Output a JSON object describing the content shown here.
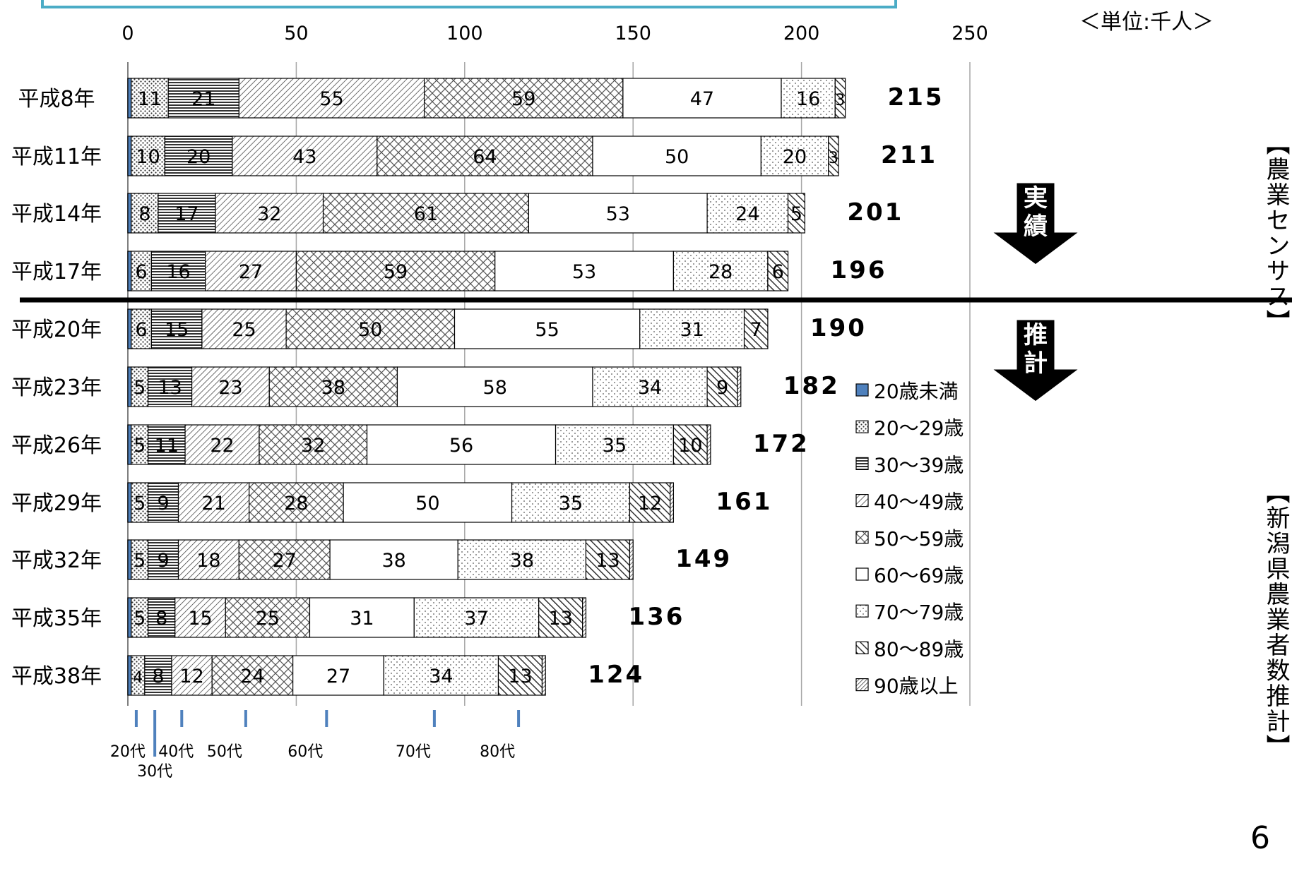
{
  "unit_label": "＜単位:千人＞",
  "page_number": "6",
  "side_labels": {
    "actual": "【農業センサス】",
    "estimate": "【新潟県農業者数推計】"
  },
  "arrows": {
    "actual": "実績",
    "estimate": "推計"
  },
  "colors": {
    "under20": "#4f81bd",
    "grid": "#a6a6a6",
    "divider": "#000000",
    "band": "#4bacc6"
  },
  "chart_data": {
    "type": "bar",
    "orientation": "horizontal",
    "stacked": true,
    "xlim": [
      0,
      250
    ],
    "x_ticks": [
      "0",
      "50",
      "100",
      "150",
      "200",
      "250"
    ],
    "grid": true,
    "legend_position": "right",
    "categories": [
      "平成8年",
      "平成11年",
      "平成14年",
      "平成17年",
      "平成20年",
      "平成23年",
      "平成26年",
      "平成29年",
      "平成32年",
      "平成35年",
      "平成38年"
    ],
    "totals": [
      "215",
      "211",
      "201",
      "196",
      "190",
      "182",
      "172",
      "161",
      "149",
      "136",
      "124"
    ],
    "series": [
      {
        "name": "20歳未満",
        "pattern": "solid",
        "values": [
          1,
          1,
          1,
          1,
          1,
          1,
          1,
          1,
          1,
          1,
          1
        ]
      },
      {
        "name": "20〜29歳",
        "pattern": "dots",
        "values": [
          11,
          10,
          8,
          6,
          6,
          5,
          5,
          5,
          5,
          5,
          4
        ]
      },
      {
        "name": "30〜39歳",
        "pattern": "hlines",
        "values": [
          21,
          20,
          17,
          16,
          15,
          13,
          11,
          9,
          9,
          8,
          8
        ]
      },
      {
        "name": "40〜49歳",
        "pattern": "diag-thin",
        "values": [
          55,
          43,
          32,
          27,
          25,
          23,
          22,
          21,
          18,
          15,
          12
        ]
      },
      {
        "name": "50〜59歳",
        "pattern": "crosshatch",
        "values": [
          59,
          64,
          61,
          59,
          50,
          38,
          32,
          28,
          27,
          25,
          24
        ]
      },
      {
        "name": "60〜69歳",
        "pattern": "blank",
        "values": [
          47,
          50,
          53,
          53,
          55,
          58,
          56,
          50,
          38,
          31,
          27
        ]
      },
      {
        "name": "70〜79歳",
        "pattern": "sparse-dots",
        "values": [
          16,
          20,
          24,
          28,
          31,
          34,
          35,
          35,
          38,
          37,
          34
        ]
      },
      {
        "name": "80〜89歳",
        "pattern": "diag-thick",
        "values": [
          3,
          3,
          5,
          6,
          7,
          9,
          10,
          12,
          13,
          13,
          13
        ]
      },
      {
        "name": "90歳以上",
        "pattern": "diag-fine",
        "values": [
          0,
          0,
          0,
          0,
          0,
          1,
          1,
          1,
          1,
          1,
          1
        ]
      }
    ],
    "age_markers": [
      {
        "label": "20代",
        "value": 2.5
      },
      {
        "label": "30代",
        "value": 8
      },
      {
        "label": "40代",
        "value": 16
      },
      {
        "label": "50代",
        "value": 35
      },
      {
        "label": "60代",
        "value": 59
      },
      {
        "label": "70代",
        "value": 91
      },
      {
        "label": "80代",
        "value": 116
      }
    ]
  }
}
